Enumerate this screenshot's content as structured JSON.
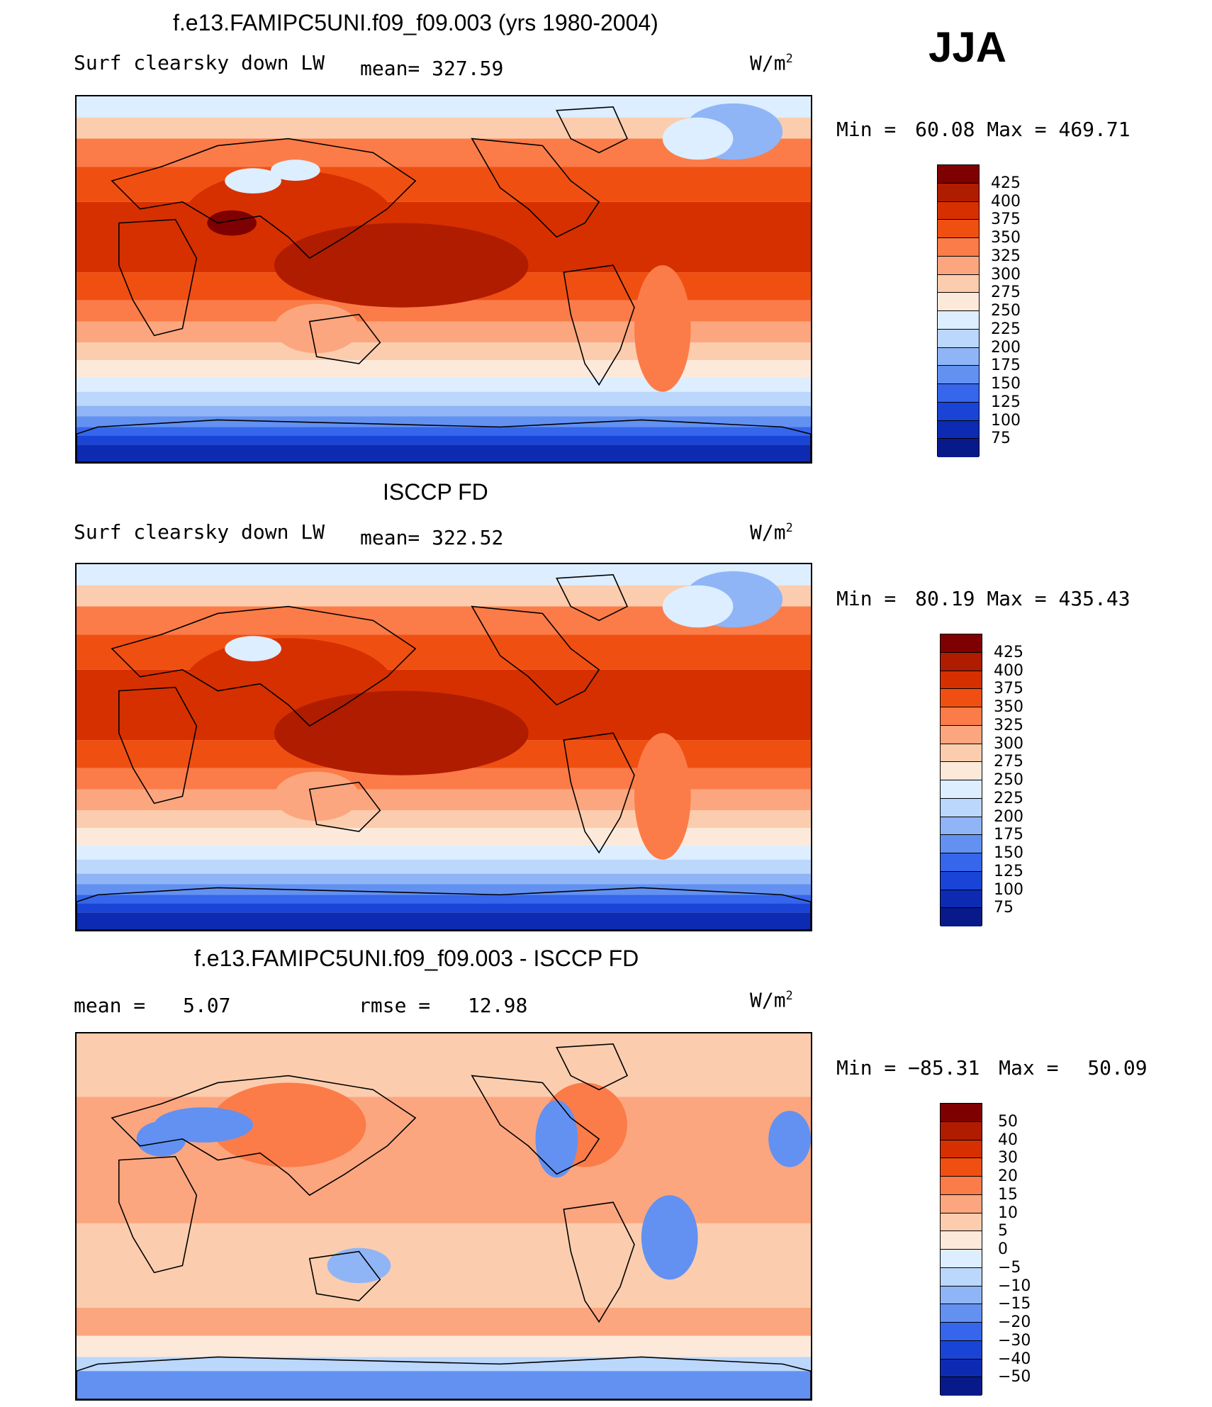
{
  "season": "JJA",
  "chart_data": [
    {
      "type": "heatmap",
      "title": "f.e13.FAMIPC5UNI.f09_f09.003 (yrs 1980-2004)",
      "variable": "Surf clearsky down LW",
      "mean_label": "mean=",
      "mean_value": "327.59",
      "units_base": "W/m",
      "units_exp": "2",
      "min_label": "Min =",
      "min_value": "60.08",
      "max_label": "Max =",
      "max_value": "469.71",
      "levels": [
        "425",
        "400",
        "375",
        "350",
        "325",
        "300",
        "275",
        "250",
        "225",
        "200",
        "175",
        "150",
        "125",
        "100",
        "75"
      ],
      "colors": [
        "#7f0000",
        "#b01c00",
        "#d63000",
        "#f04f12",
        "#fb7c48",
        "#fca67f",
        "#fbcdae",
        "#fde9da",
        "#dceeff",
        "#bbd7fb",
        "#8fb5f6",
        "#6291f2",
        "#3566eb",
        "#1a44d6",
        "#0c2bb2",
        "#081a8a"
      ]
    },
    {
      "type": "heatmap",
      "title": "ISCCP FD",
      "variable": "Surf clearsky down LW",
      "mean_label": "mean=",
      "mean_value": "322.52",
      "units_base": "W/m",
      "units_exp": "2",
      "min_label": "Min =",
      "min_value": "80.19",
      "max_label": "Max =",
      "max_value": "435.43",
      "levels": [
        "425",
        "400",
        "375",
        "350",
        "325",
        "300",
        "275",
        "250",
        "225",
        "200",
        "175",
        "150",
        "125",
        "100",
        "75"
      ],
      "colors": [
        "#7f0000",
        "#b01c00",
        "#d63000",
        "#f04f12",
        "#fb7c48",
        "#fca67f",
        "#fbcdae",
        "#fde9da",
        "#dceeff",
        "#bbd7fb",
        "#8fb5f6",
        "#6291f2",
        "#3566eb",
        "#1a44d6",
        "#0c2bb2",
        "#081a8a"
      ]
    },
    {
      "type": "heatmap",
      "title": "f.e13.FAMIPC5UNI.f09_f09.003 - ISCCP FD",
      "mean_label": "mean =",
      "mean_value": "5.07",
      "rmse_label": "rmse =",
      "rmse_value": "12.98",
      "units_base": "W/m",
      "units_exp": "2",
      "min_label": "Min =",
      "min_value": "−85.31",
      "max_label": "Max =",
      "max_value": "50.09",
      "levels": [
        "50",
        "40",
        "30",
        "20",
        "15",
        "10",
        "5",
        "0",
        "−5",
        "−10",
        "−15",
        "−20",
        "−30",
        "−40",
        "−50"
      ],
      "colors": [
        "#7f0000",
        "#b01c00",
        "#d63000",
        "#f04f12",
        "#fb7c48",
        "#fca67f",
        "#fbcdae",
        "#fde9da",
        "#dceeff",
        "#bbd7fb",
        "#8fb5f6",
        "#6291f2",
        "#3566eb",
        "#1a44d6",
        "#0c2bb2",
        "#081a8a"
      ]
    }
  ]
}
